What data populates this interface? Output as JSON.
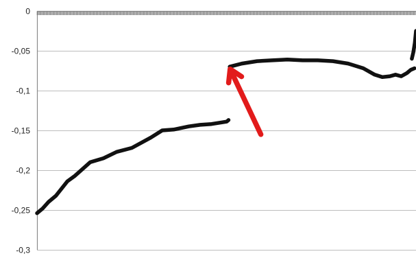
{
  "chart_data": {
    "type": "line",
    "title": "",
    "xlabel": "",
    "ylabel": "",
    "ylim": [
      -0.3,
      0
    ],
    "y_ticks": [
      {
        "value": 0,
        "label": "0"
      },
      {
        "value": -0.05,
        "label": "-0,05"
      },
      {
        "value": -0.1,
        "label": "-0,1"
      },
      {
        "value": -0.15,
        "label": "-0,15"
      },
      {
        "value": -0.2,
        "label": "-0,2"
      },
      {
        "value": -0.25,
        "label": "-0,25"
      },
      {
        "value": -0.3,
        "label": "-0,3"
      }
    ],
    "grid": true,
    "legend": "none",
    "x_count": 1000,
    "series": [
      {
        "color": "#111111",
        "segments": [
          {
            "x": [
              0,
              15,
              30,
              50,
              80,
              100,
              140,
              175,
              210,
              250,
              300,
              330,
              360,
              400,
              430,
              460,
              500,
              505
            ],
            "y": [
              -0.254,
              -0.248,
              -0.24,
              -0.232,
              -0.214,
              -0.207,
              -0.19,
              -0.185,
              -0.177,
              -0.172,
              -0.159,
              -0.15,
              -0.149,
              -0.145,
              -0.143,
              -0.142,
              -0.139,
              -0.137
            ]
          },
          {
            "x": [
              508,
              540,
              580,
              620,
              660,
              700,
              740,
              780,
              820,
              860,
              890,
              910,
              930,
              945,
              960,
              975,
              985,
              995
            ],
            "y": [
              -0.07,
              -0.066,
              -0.063,
              -0.062,
              -0.061,
              -0.062,
              -0.062,
              -0.063,
              -0.066,
              -0.072,
              -0.08,
              -0.083,
              -0.082,
              -0.08,
              -0.082,
              -0.078,
              -0.074,
              -0.072
            ]
          },
          {
            "x": [
              988,
              992,
              996,
              999
            ],
            "y": [
              -0.06,
              -0.052,
              -0.04,
              -0.025
            ]
          }
        ]
      }
    ],
    "annotations": [
      {
        "type": "arrow",
        "color": "#e21b1b",
        "from": {
          "x": 590,
          "y": -0.155
        },
        "to": {
          "x": 509,
          "y": -0.073
        }
      }
    ]
  }
}
